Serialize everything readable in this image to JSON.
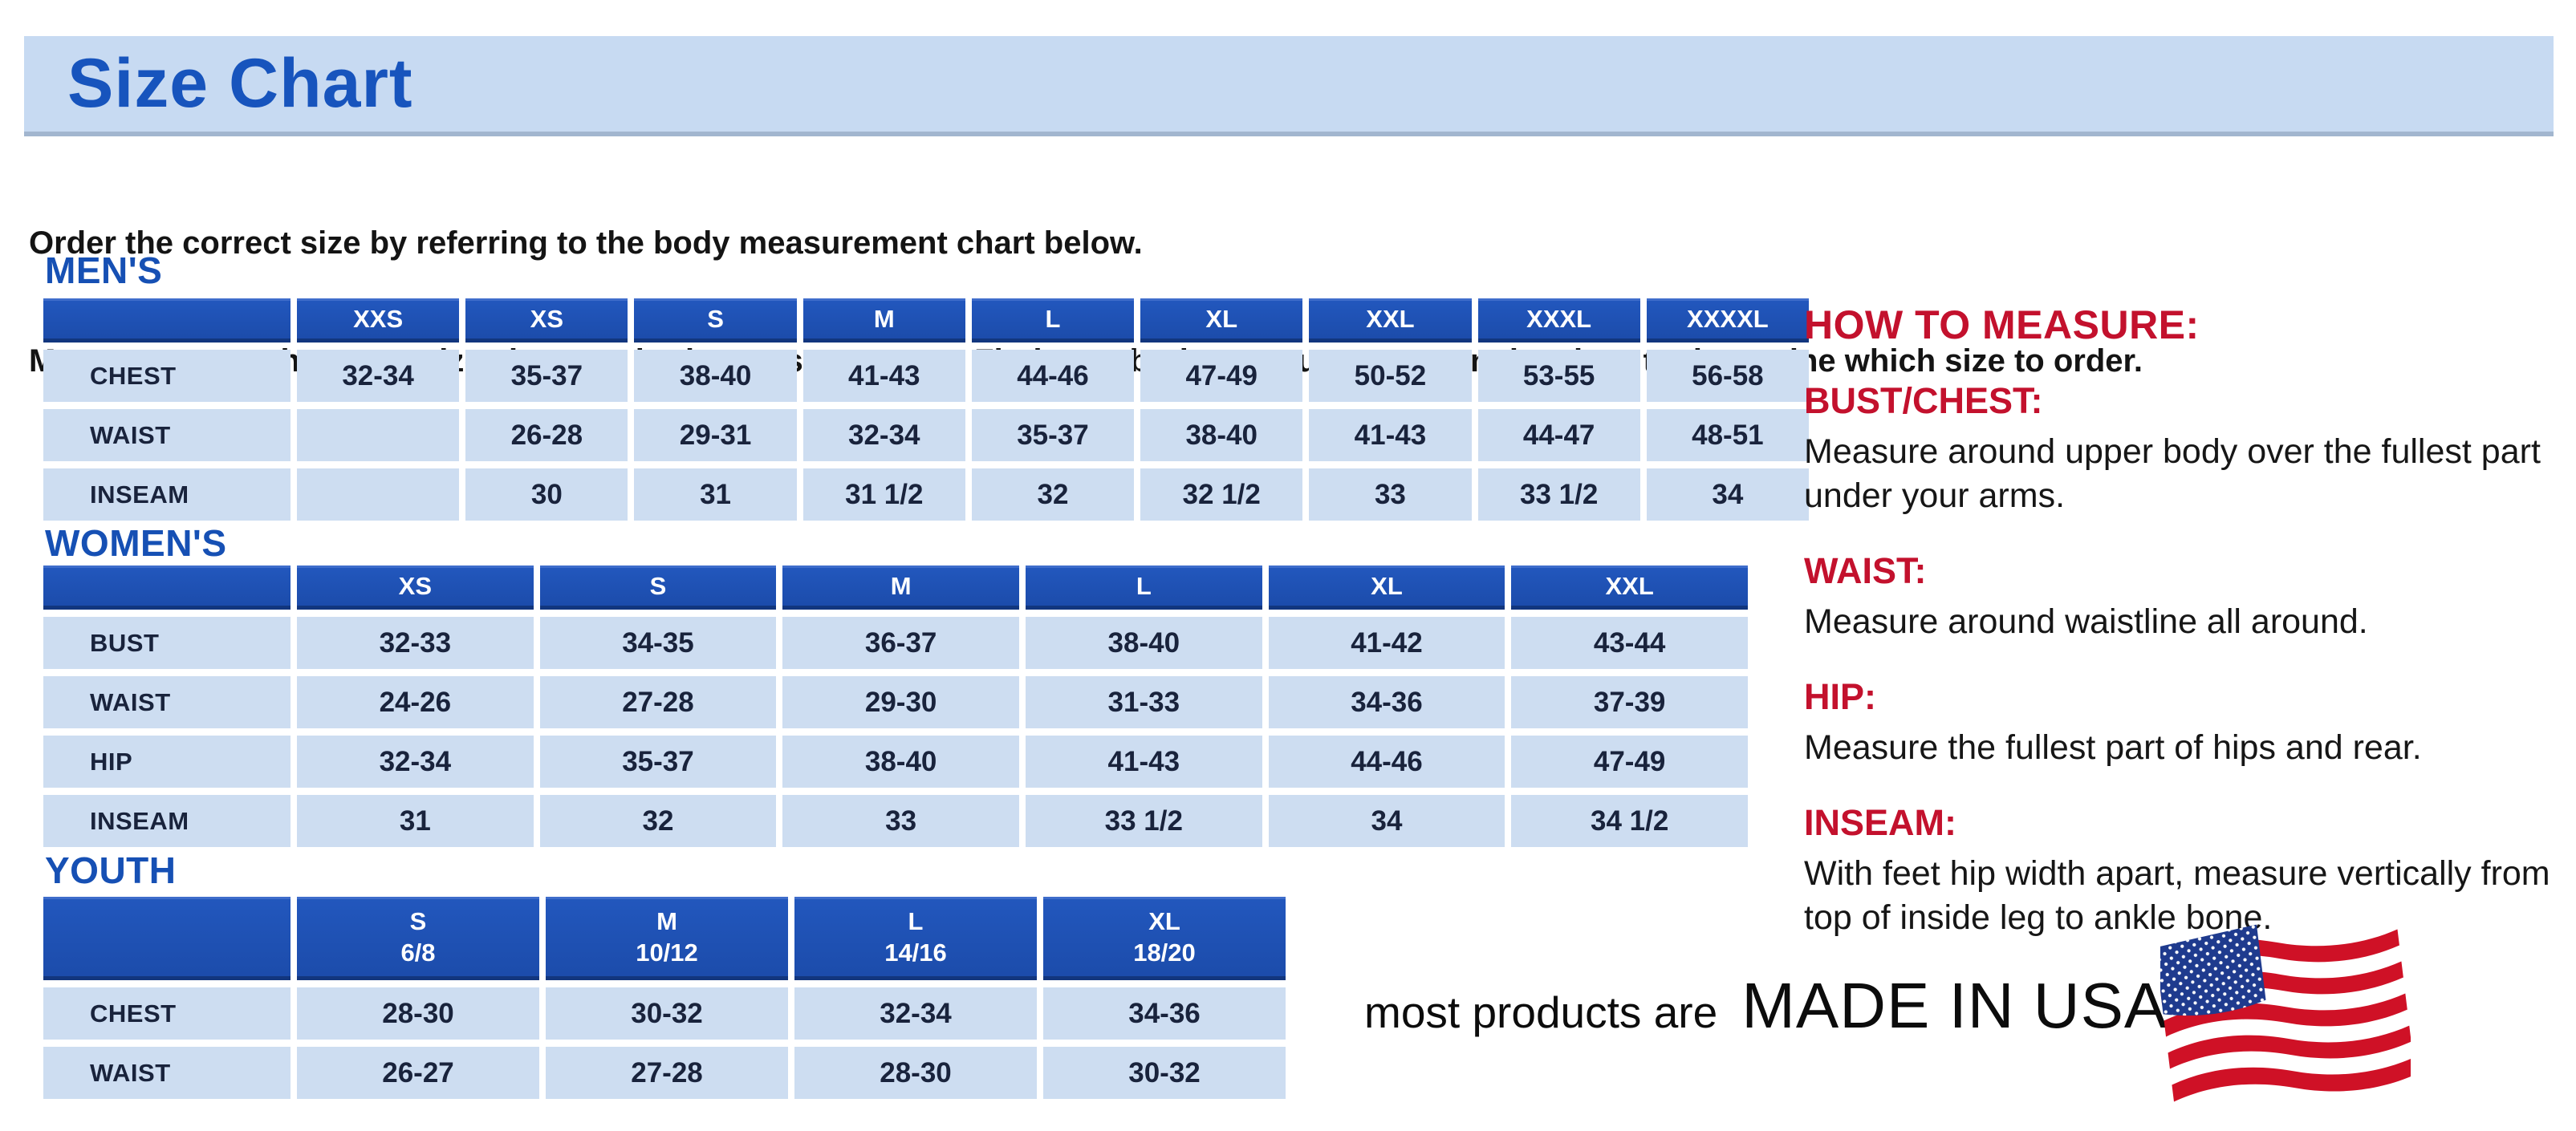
{
  "banner": {
    "title": "Size Chart"
  },
  "intro": {
    "line1": "Order the correct size by referring to the body measurement chart below.",
    "line2": "Measurements shown on size chart are body measurements.  Find your body measurements on the chart to determine which size to order."
  },
  "tables": {
    "mens": {
      "section_label": "MEN'S",
      "columns": [
        "",
        "XXS",
        "XS",
        "S",
        "M",
        "L",
        "XL",
        "XXL",
        "XXXL",
        "XXXXL"
      ],
      "rows": [
        {
          "label": "CHEST",
          "values": [
            "32-34",
            "35-37",
            "38-40",
            "41-43",
            "44-46",
            "47-49",
            "50-52",
            "53-55",
            "56-58"
          ]
        },
        {
          "label": "WAIST",
          "values": [
            "",
            "26-28",
            "29-31",
            "32-34",
            "35-37",
            "38-40",
            "41-43",
            "44-47",
            "48-51"
          ]
        },
        {
          "label": "INSEAM",
          "values": [
            "",
            "30",
            "31",
            "31 1/2",
            "32",
            "32 1/2",
            "33",
            "33 1/2",
            "34"
          ]
        }
      ]
    },
    "womens": {
      "section_label": "WOMEN'S",
      "columns": [
        "",
        "XS",
        "S",
        "M",
        "L",
        "XL",
        "XXL"
      ],
      "rows": [
        {
          "label": "BUST",
          "values": [
            "32-33",
            "34-35",
            "36-37",
            "38-40",
            "41-42",
            "43-44"
          ]
        },
        {
          "label": "WAIST",
          "values": [
            "24-26",
            "27-28",
            "29-30",
            "31-33",
            "34-36",
            "37-39"
          ]
        },
        {
          "label": "HIP",
          "values": [
            "32-34",
            "35-37",
            "38-40",
            "41-43",
            "44-46",
            "47-49"
          ]
        },
        {
          "label": "INSEAM",
          "values": [
            "31",
            "32",
            "33",
            "33 1/2",
            "34",
            "34 1/2"
          ]
        }
      ]
    },
    "youth": {
      "section_label": "YOUTH",
      "columns": [
        "",
        "S\n6/8",
        "M\n10/12",
        "L\n14/16",
        "XL\n18/20"
      ],
      "rows": [
        {
          "label": "CHEST",
          "values": [
            "28-30",
            "30-32",
            "32-34",
            "34-36"
          ]
        },
        {
          "label": "WAIST",
          "values": [
            "26-27",
            "27-28",
            "28-30",
            "30-32"
          ]
        }
      ]
    }
  },
  "how_to_measure": {
    "title": "HOW TO MEASURE:",
    "items": [
      {
        "label": "BUST/CHEST:",
        "text": "Measure around upper body over the fullest part under your arms."
      },
      {
        "label": "WAIST:",
        "text": "Measure around waistline all around."
      },
      {
        "label": "HIP:",
        "text": "Measure the fullest part of hips and rear."
      },
      {
        "label": "INSEAM:",
        "text": "With feet hip width apart, measure vertically from top of inside leg to ankle bone."
      }
    ]
  },
  "footer": {
    "prefix": "most products are",
    "made_in": "MADE IN USA",
    "flag_icon": "us-flag-icon"
  },
  "colors": {
    "banner_background": "#c7daf2",
    "title_blue": "#1754bd",
    "section_blue": "#1650b4",
    "table_header_blue": "#1d51b5",
    "table_cell_blue": "#cdddf1",
    "cell_text_navy": "#19233c",
    "accent_red": "#c3112d",
    "flag_red": "#cf1126",
    "flag_blue": "#1f3b8e"
  }
}
